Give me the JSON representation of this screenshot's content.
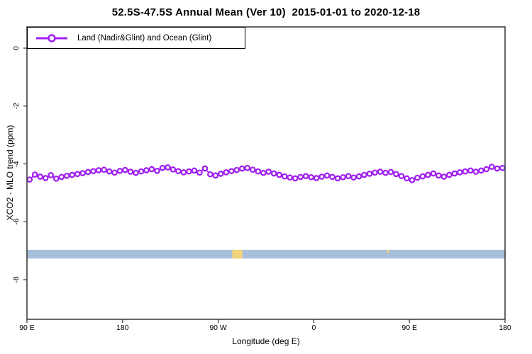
{
  "title": "52.5S-47.5S Annual Mean (Ver 10)  2015-01-01 to 2020-12-18",
  "legend": {
    "label": "Land (Nadir&Glint) and Ocean (Glint)"
  },
  "axes": {
    "x_label": "Longitude (deg E)",
    "y_label": "XCO2 - MLO trend (ppm)"
  },
  "colors": {
    "series": "#A020F0",
    "ocean_band": "#A8BEDB",
    "land_band": "#F2D478",
    "axis": "#404040",
    "text": "#000000",
    "background": "#ffffff"
  },
  "chart_data": {
    "type": "line",
    "title": "52.5S-47.5S Annual Mean (Ver 10)  2015-01-01 to 2020-12-18",
    "xlabel": "Longitude (deg E)",
    "ylabel": "XCO2 - MLO trend (ppm)",
    "xlim": [
      90,
      540
    ],
    "ylim": [
      -9.4,
      0.75
    ],
    "grid": false,
    "legend_position": "top-left",
    "x_tick_positions": [
      90,
      180,
      270,
      360,
      450,
      540
    ],
    "x_tick_labels": [
      "90 E",
      "180",
      "90 W",
      "0",
      "90 E",
      "180"
    ],
    "y_tick_positions": [
      0,
      -2,
      -4,
      -6,
      -8
    ],
    "y_tick_labels": [
      "0",
      "-2",
      "-4",
      "-6",
      "-8"
    ],
    "series": [
      {
        "name": "Land (Nadir&Glint) and Ocean (Glint)",
        "marker": "open-circle",
        "color": "#A020F0",
        "x": [
          92.5,
          97.5,
          102.5,
          107.5,
          112.5,
          117.5,
          122.5,
          127.5,
          132.5,
          137.5,
          142.5,
          147.5,
          152.5,
          157.5,
          162.5,
          167.5,
          172.5,
          177.5,
          182.5,
          187.5,
          192.5,
          197.5,
          202.5,
          207.5,
          212.5,
          217.5,
          222.5,
          227.5,
          232.5,
          237.5,
          242.5,
          247.5,
          252.5,
          257.5,
          262.5,
          267.5,
          272.5,
          277.5,
          282.5,
          287.5,
          292.5,
          297.5,
          302.5,
          307.5,
          312.5,
          317.5,
          322.5,
          327.5,
          332.5,
          337.5,
          342.5,
          347.5,
          352.5,
          357.5,
          362.5,
          367.5,
          372.5,
          377.5,
          382.5,
          387.5,
          392.5,
          397.5,
          402.5,
          407.5,
          412.5,
          417.5,
          422.5,
          427.5,
          432.5,
          437.5,
          442.5,
          447.5,
          452.5,
          457.5,
          462.5,
          467.5,
          472.5,
          477.5,
          482.5,
          487.5,
          492.5,
          497.5,
          502.5,
          507.5,
          512.5,
          517.5,
          522.5,
          527.5,
          532.5,
          537.5
        ],
        "y": [
          -4.54,
          -4.37,
          -4.44,
          -4.49,
          -4.39,
          -4.51,
          -4.45,
          -4.41,
          -4.38,
          -4.35,
          -4.32,
          -4.28,
          -4.25,
          -4.22,
          -4.2,
          -4.26,
          -4.3,
          -4.24,
          -4.21,
          -4.27,
          -4.31,
          -4.26,
          -4.22,
          -4.18,
          -4.24,
          -4.14,
          -4.12,
          -4.19,
          -4.25,
          -4.29,
          -4.26,
          -4.23,
          -4.3,
          -4.16,
          -4.36,
          -4.4,
          -4.34,
          -4.29,
          -4.25,
          -4.21,
          -4.16,
          -4.14,
          -4.2,
          -4.26,
          -4.31,
          -4.27,
          -4.33,
          -4.38,
          -4.43,
          -4.47,
          -4.5,
          -4.45,
          -4.42,
          -4.46,
          -4.49,
          -4.44,
          -4.4,
          -4.45,
          -4.5,
          -4.46,
          -4.42,
          -4.47,
          -4.43,
          -4.38,
          -4.34,
          -4.3,
          -4.27,
          -4.31,
          -4.28,
          -4.35,
          -4.42,
          -4.5,
          -4.56,
          -4.48,
          -4.43,
          -4.38,
          -4.33,
          -4.4,
          -4.44,
          -4.38,
          -4.33,
          -4.29,
          -4.26,
          -4.23,
          -4.27,
          -4.23,
          -4.18,
          -4.1,
          -4.16,
          -4.14
        ]
      }
    ],
    "surface_band": {
      "y_top": -6.97,
      "y_bottom": -7.27,
      "ocean_color": "#A8BEDB",
      "land_color": "#F2D478",
      "land_segments_lon": [
        {
          "from": 283.3,
          "to": 292.7,
          "full": true
        },
        {
          "from": 428.6,
          "to": 430.8,
          "full": false
        }
      ]
    }
  }
}
